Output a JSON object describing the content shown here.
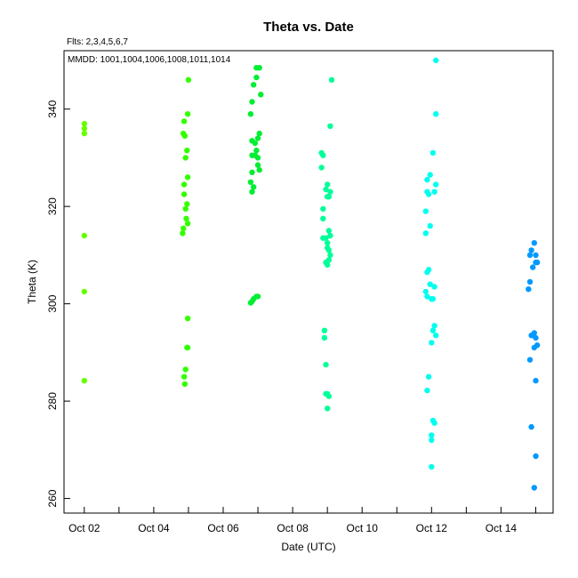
{
  "chart_data": {
    "type": "scatter",
    "title": "Theta  vs. Date",
    "xlabel": "Date (UTC)",
    "ylabel": "Theta (K)",
    "annotations": [
      "Flts: 2,3,4,5,6,7",
      "MMDD: 1001,1004,1006,1008,1011,1014"
    ],
    "xlim": [
      "2008-10-01T10:00",
      "2008-10-15T12:00"
    ],
    "ylim": [
      257,
      352
    ],
    "x_ticks": [
      {
        "date": "2008-10-02T00:00",
        "label": "Oct 02"
      },
      {
        "date": "2008-10-03T00:00",
        "label": ""
      },
      {
        "date": "2008-10-04T00:00",
        "label": "Oct 04"
      },
      {
        "date": "2008-10-05T00:00",
        "label": ""
      },
      {
        "date": "2008-10-06T00:00",
        "label": "Oct 06"
      },
      {
        "date": "2008-10-07T00:00",
        "label": ""
      },
      {
        "date": "2008-10-08T00:00",
        "label": "Oct 08"
      },
      {
        "date": "2008-10-09T00:00",
        "label": ""
      },
      {
        "date": "2008-10-10T00:00",
        "label": "Oct 10"
      },
      {
        "date": "2008-10-11T00:00",
        "label": ""
      },
      {
        "date": "2008-10-12T00:00",
        "label": "Oct 12"
      },
      {
        "date": "2008-10-13T00:00",
        "label": ""
      },
      {
        "date": "2008-10-14T00:00",
        "label": "Oct 14"
      },
      {
        "date": "2008-10-15T00:00",
        "label": ""
      }
    ],
    "y_ticks": [
      260,
      280,
      300,
      320,
      340
    ],
    "grid": false,
    "series": [
      {
        "color": "#66ff00",
        "points": [
          [
            "2008-10-02T00:05",
            337
          ],
          [
            "2008-10-02T00:05",
            336
          ],
          [
            "2008-10-02T00:05",
            335
          ],
          [
            "2008-10-02T00:00",
            314
          ],
          [
            "2008-10-02T00:00",
            302.5
          ],
          [
            "2008-10-02T00:00",
            284.2
          ]
        ]
      },
      {
        "color": "#33ff00",
        "points": [
          [
            "2008-10-05T00:00",
            346
          ],
          [
            "2008-10-04T23:30",
            339
          ],
          [
            "2008-10-04T21:00",
            337.5
          ],
          [
            "2008-10-04T20:30",
            335
          ],
          [
            "2008-10-04T21:30",
            334.5
          ],
          [
            "2008-10-04T23:00",
            331.5
          ],
          [
            "2008-10-04T22:00",
            330
          ],
          [
            "2008-10-04T23:30",
            326
          ],
          [
            "2008-10-04T21:00",
            324.5
          ],
          [
            "2008-10-04T21:00",
            322.5
          ],
          [
            "2008-10-04T23:00",
            320.5
          ],
          [
            "2008-10-04T22:00",
            319.5
          ],
          [
            "2008-10-04T22:30",
            317.5
          ],
          [
            "2008-10-04T23:30",
            316.5
          ],
          [
            "2008-10-04T20:30",
            315.5
          ],
          [
            "2008-10-04T20:00",
            314.5
          ],
          [
            "2008-10-04T23:30",
            297
          ],
          [
            "2008-10-04T23:00",
            291
          ],
          [
            "2008-10-04T23:30",
            291
          ],
          [
            "2008-10-04T22:00",
            286.5
          ],
          [
            "2008-10-04T21:00",
            285
          ],
          [
            "2008-10-04T21:30",
            283.5
          ]
        ]
      },
      {
        "color": "#00ee33",
        "points": [
          [
            "2008-10-06T23:00",
            348.5
          ],
          [
            "2008-10-07T01:00",
            348.5
          ],
          [
            "2008-10-06T23:00",
            346.5
          ],
          [
            "2008-10-06T21:00",
            345
          ],
          [
            "2008-10-07T02:00",
            343
          ],
          [
            "2008-10-06T20:00",
            341.5
          ],
          [
            "2008-10-06T19:00",
            339
          ],
          [
            "2008-10-07T01:00",
            335
          ],
          [
            "2008-10-07T00:00",
            334
          ],
          [
            "2008-10-06T20:00",
            333.5
          ],
          [
            "2008-10-06T22:00",
            333
          ],
          [
            "2008-10-06T23:00",
            331.5
          ],
          [
            "2008-10-06T22:00",
            330.5
          ],
          [
            "2008-10-07T00:00",
            330
          ],
          [
            "2008-10-06T20:00",
            330.5
          ],
          [
            "2008-10-07T00:00",
            328.5
          ],
          [
            "2008-10-07T01:00",
            327.5
          ],
          [
            "2008-10-06T20:00",
            327
          ],
          [
            "2008-10-06T19:00",
            325
          ],
          [
            "2008-10-06T21:00",
            324
          ],
          [
            "2008-10-06T20:00",
            323
          ],
          [
            "2008-10-07T00:00",
            301.5
          ],
          [
            "2008-10-06T23:00",
            301.5
          ],
          [
            "2008-10-06T21:00",
            301
          ],
          [
            "2008-10-06T20:00",
            300.5
          ],
          [
            "2008-10-06T19:00",
            300.2
          ]
        ]
      },
      {
        "color": "#00ff99",
        "points": [
          [
            "2008-10-09T03:00",
            346
          ],
          [
            "2008-10-09T02:00",
            336.5
          ],
          [
            "2008-10-08T20:00",
            331
          ],
          [
            "2008-10-08T21:00",
            330.5
          ],
          [
            "2008-10-08T20:00",
            328
          ],
          [
            "2008-10-09T00:00",
            324.5
          ],
          [
            "2008-10-08T23:00",
            323.5
          ],
          [
            "2008-10-09T02:00",
            323
          ],
          [
            "2008-10-09T00:00",
            322
          ],
          [
            "2008-10-09T01:00",
            322
          ],
          [
            "2008-10-08T21:00",
            319.5
          ],
          [
            "2008-10-08T21:00",
            317.5
          ],
          [
            "2008-10-09T01:00",
            315
          ],
          [
            "2008-10-09T02:00",
            314
          ],
          [
            "2008-10-08T21:00",
            313.5
          ],
          [
            "2008-10-08T23:00",
            313.5
          ],
          [
            "2008-10-09T00:00",
            312.5
          ],
          [
            "2008-10-09T00:00",
            311.5
          ],
          [
            "2008-10-09T01:00",
            311
          ],
          [
            "2008-10-09T02:00",
            310
          ],
          [
            "2008-10-09T01:00",
            309
          ],
          [
            "2008-10-08T23:00",
            308.5
          ],
          [
            "2008-10-09T00:00",
            308
          ],
          [
            "2008-10-08T22:00",
            294.5
          ],
          [
            "2008-10-08T22:00",
            293
          ],
          [
            "2008-10-08T23:00",
            287.5
          ],
          [
            "2008-10-08T23:00",
            281.5
          ],
          [
            "2008-10-09T00:00",
            281.5
          ],
          [
            "2008-10-09T01:00",
            281
          ],
          [
            "2008-10-09T00:00",
            278.5
          ]
        ]
      },
      {
        "color": "#00ffee",
        "points": [
          [
            "2008-10-12T03:00",
            350
          ],
          [
            "2008-10-12T03:00",
            339
          ],
          [
            "2008-10-12T01:00",
            331
          ],
          [
            "2008-10-11T23:00",
            326.5
          ],
          [
            "2008-10-12T03:00",
            324.5
          ],
          [
            "2008-10-11T21:00",
            325.5
          ],
          [
            "2008-10-11T21:00",
            323
          ],
          [
            "2008-10-11T22:00",
            322.5
          ],
          [
            "2008-10-12T02:00",
            323
          ],
          [
            "2008-10-11T20:00",
            319
          ],
          [
            "2008-10-11T23:00",
            316
          ],
          [
            "2008-10-11T20:00",
            314.5
          ],
          [
            "2008-10-11T21:00",
            306.5
          ],
          [
            "2008-10-11T22:00",
            307
          ],
          [
            "2008-10-11T23:00",
            304
          ],
          [
            "2008-10-12T02:00",
            303.5
          ],
          [
            "2008-10-11T20:00",
            302.5
          ],
          [
            "2008-10-11T21:00",
            301.5
          ],
          [
            "2008-10-12T00:00",
            301
          ],
          [
            "2008-10-12T01:00",
            301
          ],
          [
            "2008-10-12T02:00",
            295.5
          ],
          [
            "2008-10-12T03:00",
            293.5
          ],
          [
            "2008-10-12T01:00",
            294.5
          ],
          [
            "2008-10-12T00:00",
            292
          ],
          [
            "2008-10-11T22:00",
            285
          ],
          [
            "2008-10-11T21:00",
            282.2
          ],
          [
            "2008-10-12T01:00",
            276
          ],
          [
            "2008-10-12T02:00",
            275.5
          ],
          [
            "2008-10-12T00:00",
            273
          ],
          [
            "2008-10-12T00:00",
            272
          ],
          [
            "2008-10-12T00:00",
            266.5
          ]
        ]
      },
      {
        "color": "#0099ff",
        "points": [
          [
            "2008-10-14T23:00",
            312.5
          ],
          [
            "2008-10-14T21:00",
            311
          ],
          [
            "2008-10-15T00:00",
            310
          ],
          [
            "2008-10-14T20:00",
            310
          ],
          [
            "2008-10-15T01:00",
            308.5
          ],
          [
            "2008-10-15T00:00",
            308.5
          ],
          [
            "2008-10-14T22:00",
            307.5
          ],
          [
            "2008-10-14T20:00",
            304.5
          ],
          [
            "2008-10-14T19:00",
            303
          ],
          [
            "2008-10-14T21:00",
            293.5
          ],
          [
            "2008-10-14T23:00",
            294
          ],
          [
            "2008-10-15T00:00",
            293
          ],
          [
            "2008-10-15T01:00",
            291.5
          ],
          [
            "2008-10-14T23:00",
            291
          ],
          [
            "2008-10-14T20:00",
            288.5
          ],
          [
            "2008-10-15T00:00",
            284.2
          ],
          [
            "2008-10-14T21:00",
            274.7
          ],
          [
            "2008-10-15T00:00",
            268.7
          ],
          [
            "2008-10-14T23:00",
            262.2
          ]
        ]
      }
    ]
  }
}
